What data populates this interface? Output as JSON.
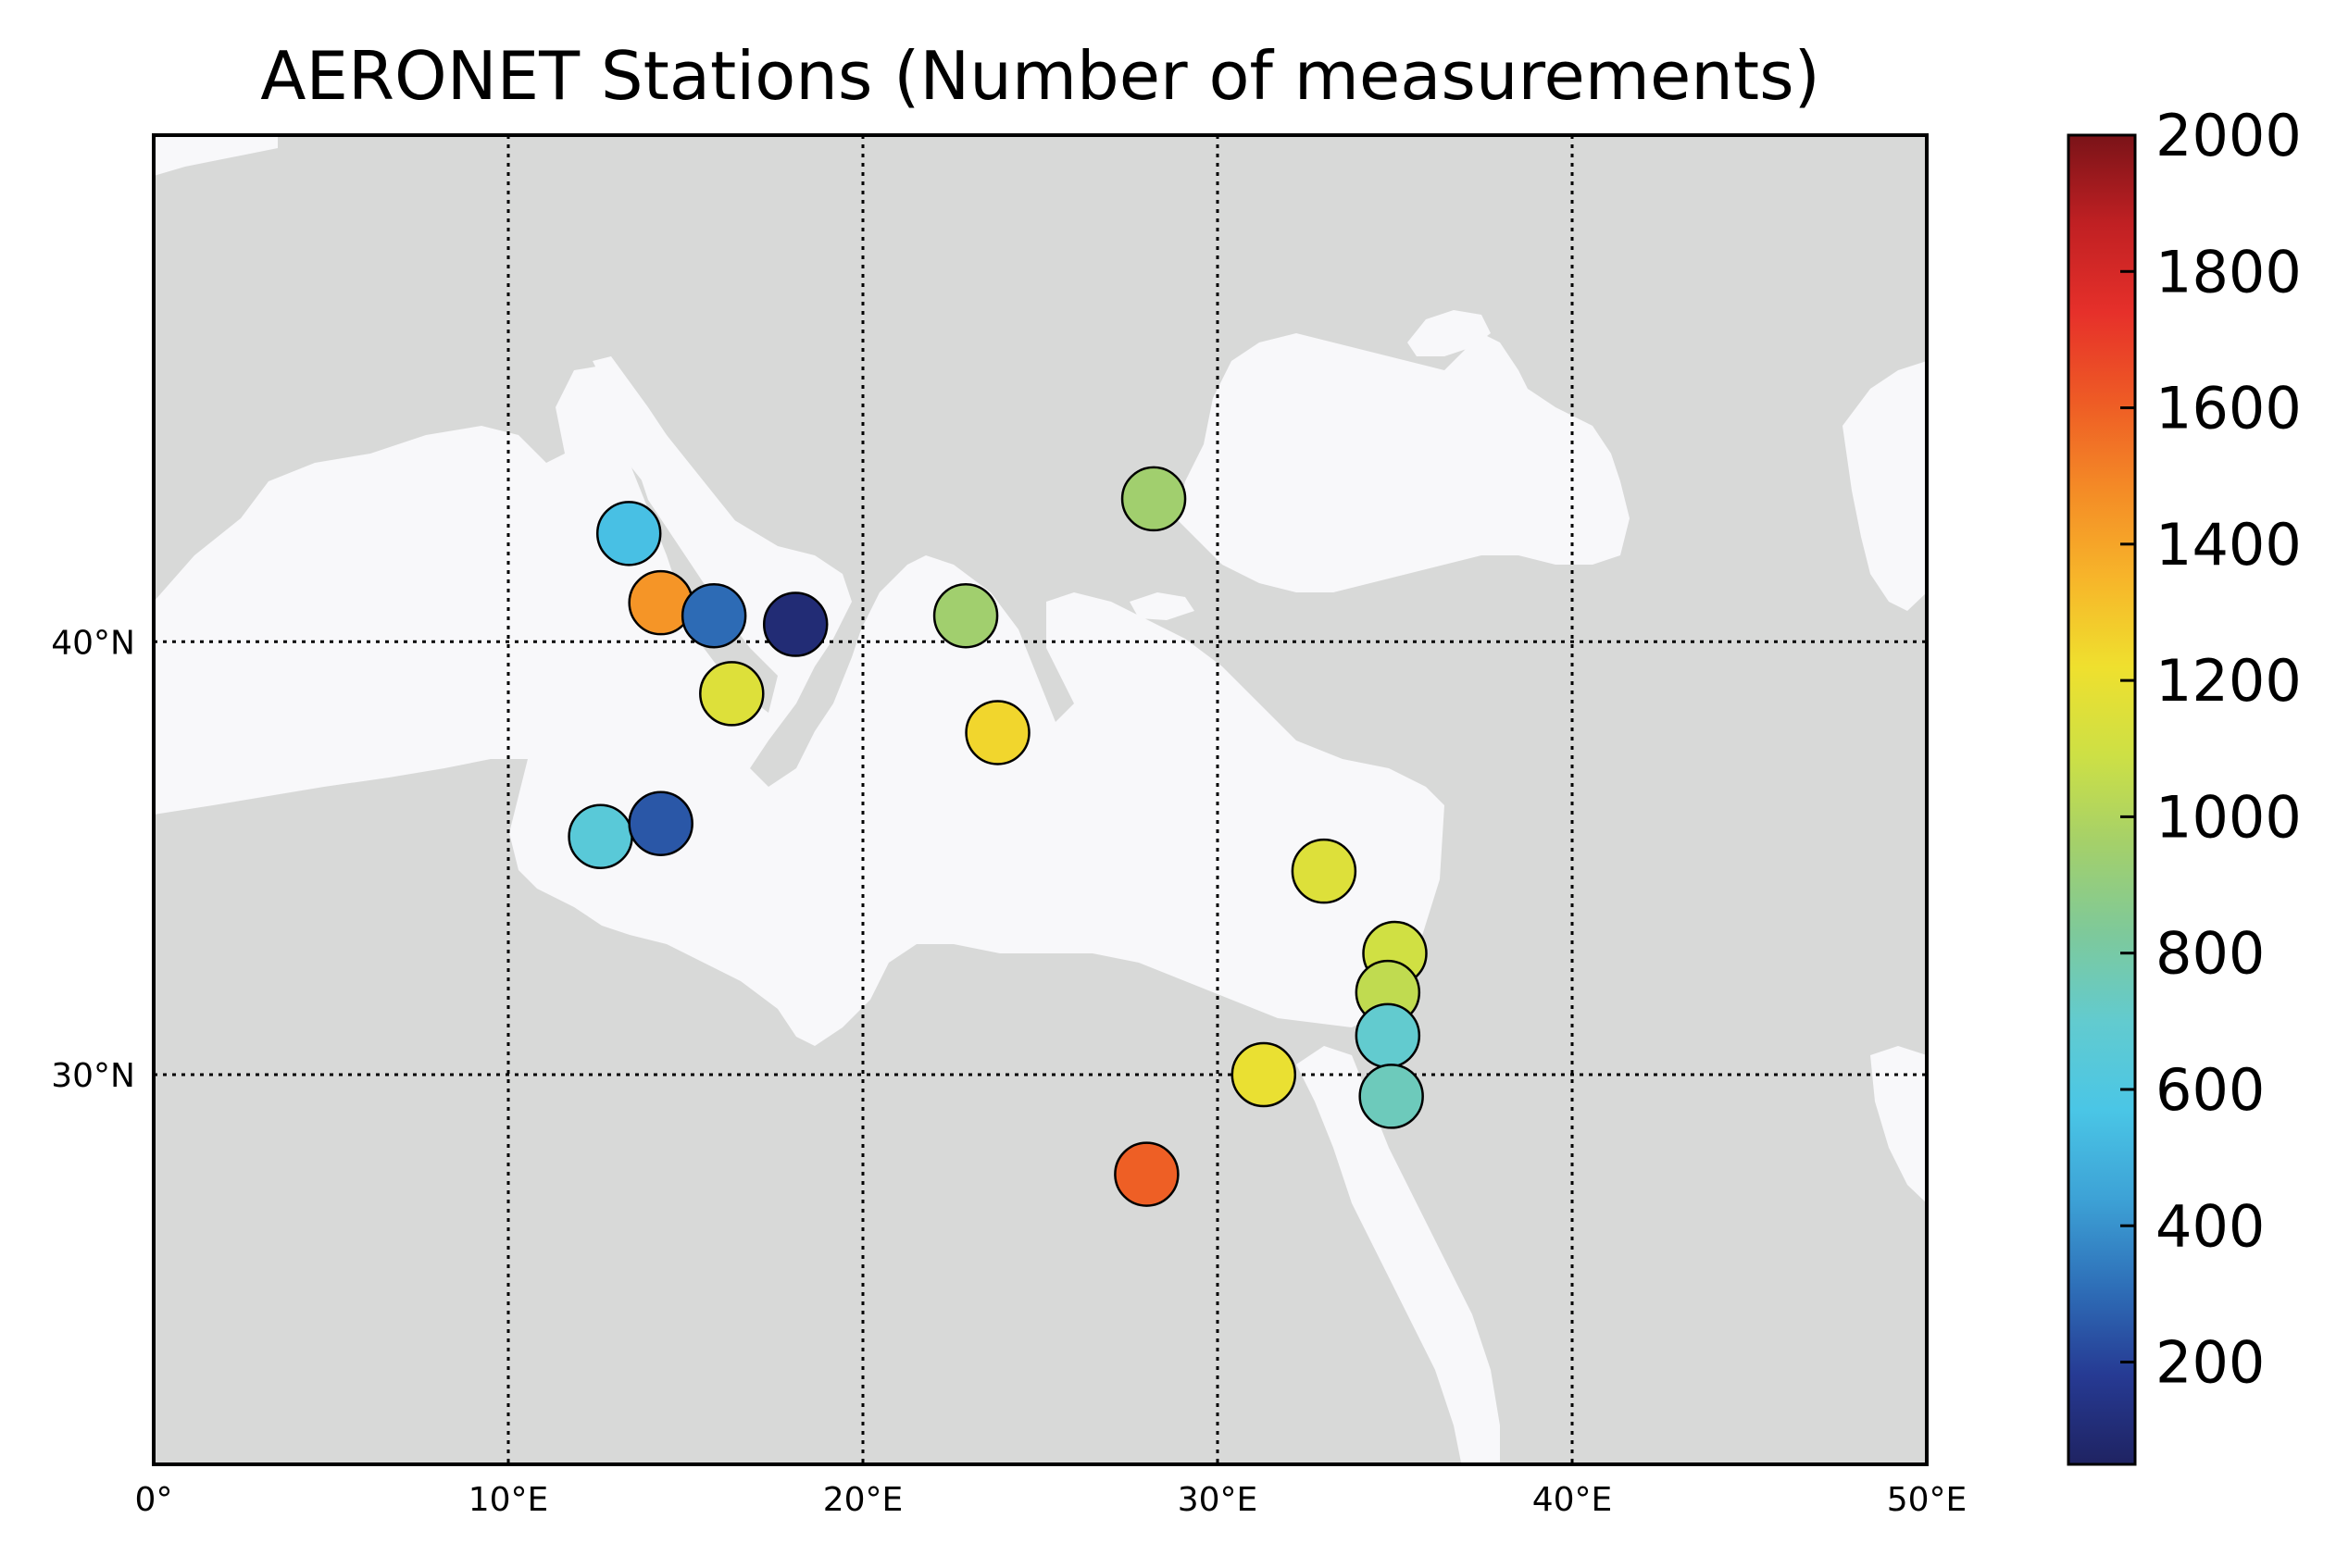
{
  "title": "AERONET Stations (Number of measurements)",
  "map": {
    "lon_range": [
      0,
      50
    ],
    "lat_range": [
      21,
      51.7
    ],
    "graticule_lons": [
      10,
      20,
      30,
      40
    ],
    "graticule_lats": [
      30,
      40
    ],
    "x_tick_labels": [
      "0°",
      "10°E",
      "20°E",
      "30°E",
      "40°E",
      "50°E"
    ],
    "y_tick_labels": [
      {
        "lat": 40,
        "text": "40°N"
      },
      {
        "lat": 30,
        "text": "30°N"
      }
    ],
    "land_color": "#d8d9d8",
    "water_color": "#f8f8fa"
  },
  "colorbar": {
    "min": 50,
    "max": 2000,
    "ticks": [
      200,
      400,
      600,
      800,
      1000,
      1200,
      1400,
      1600,
      1800,
      2000
    ],
    "tick_labels": [
      "200",
      "400",
      "600",
      "800",
      "1000",
      "1200",
      "1400",
      "1600",
      "1800",
      "2000"
    ],
    "colormap": [
      "#1f2362",
      "#263a93",
      "#2e6fb8",
      "#3da2d6",
      "#4ac6e6",
      "#62cbcf",
      "#7ec99a",
      "#a4d06a",
      "#cde045",
      "#efe02e",
      "#f7b52a",
      "#f48b26",
      "#ee5b25",
      "#e6302a",
      "#c02023",
      "#7a1318"
    ]
  },
  "stations": [
    {
      "lon": 13.4,
      "lat": 42.5,
      "value": 550
    },
    {
      "lon": 28.2,
      "lat": 43.3,
      "value": 950
    },
    {
      "lon": 14.3,
      "lat": 40.9,
      "value": 1450
    },
    {
      "lon": 15.8,
      "lat": 40.6,
      "value": 300
    },
    {
      "lon": 18.1,
      "lat": 40.4,
      "value": 100
    },
    {
      "lon": 22.9,
      "lat": 40.6,
      "value": 950
    },
    {
      "lon": 16.3,
      "lat": 38.8,
      "value": 1150
    },
    {
      "lon": 23.8,
      "lat": 37.9,
      "value": 1250
    },
    {
      "lon": 12.6,
      "lat": 35.5,
      "value": 650
    },
    {
      "lon": 14.3,
      "lat": 35.8,
      "value": 250
    },
    {
      "lon": 33.0,
      "lat": 34.7,
      "value": 1150
    },
    {
      "lon": 35.0,
      "lat": 32.8,
      "value": 1100
    },
    {
      "lon": 34.8,
      "lat": 31.9,
      "value": 1050
    },
    {
      "lon": 34.8,
      "lat": 30.9,
      "value": 700
    },
    {
      "lon": 31.3,
      "lat": 30.0,
      "value": 1200
    },
    {
      "lon": 34.9,
      "lat": 29.5,
      "value": 750
    },
    {
      "lon": 28.0,
      "lat": 27.7,
      "value": 1600
    }
  ]
}
